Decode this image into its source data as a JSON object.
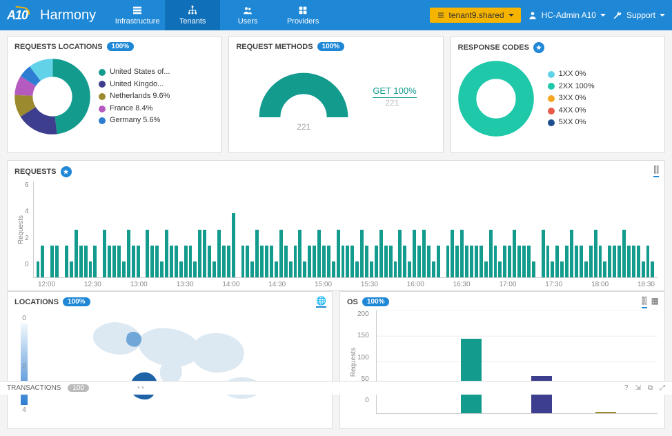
{
  "header": {
    "logo_text": "A10",
    "app_name": "Harmony",
    "nav": [
      {
        "label": "Infrastructure",
        "icon": "infra"
      },
      {
        "label": "Tenants",
        "icon": "tenants",
        "active": true
      },
      {
        "label": "Users",
        "icon": "users"
      },
      {
        "label": "Providers",
        "icon": "providers"
      }
    ],
    "tenant_label": "tenant9.shared",
    "user_label": "HC-Admin A10",
    "support_label": "Support"
  },
  "locations_panel": {
    "title": "REQUESTS LOCATIONS",
    "badge": "100%",
    "slices": [
      {
        "label": "United States of...",
        "color": "#139b8e",
        "pct": 48
      },
      {
        "label": "United Kingdo...",
        "color": "#3e3e8e",
        "pct": 18
      },
      {
        "label": "Netherlands 9.6%",
        "color": "#9c8b2e",
        "pct": 9.6
      },
      {
        "label": "France 8.4%",
        "color": "#b55bc0",
        "pct": 8.4
      },
      {
        "label": "Germany 5.6%",
        "color": "#2d7dd2",
        "pct": 5.6
      }
    ],
    "other_color": "#62d2e9",
    "other_pct": 10.4
  },
  "methods_panel": {
    "title": "REQUEST METHODS",
    "badge": "100%",
    "gauge_color": "#139b8e",
    "gauge_value": 221,
    "get_label": "GET 100%",
    "get_sub": "221"
  },
  "codes_panel": {
    "title": "RESPONSE CODES",
    "items": [
      {
        "label": "1XX 0%",
        "color": "#62d2e9"
      },
      {
        "label": "2XX 100%",
        "color": "#1fc8a9"
      },
      {
        "label": "3XX 0%",
        "color": "#f5a623"
      },
      {
        "label": "4XX 0%",
        "color": "#e85b4a"
      },
      {
        "label": "5XX 0%",
        "color": "#1e4e8e"
      }
    ],
    "ring_color": "#1fc8a9"
  },
  "requests_panel": {
    "title": "REQUESTS",
    "ylabel": "Requests",
    "ymax": 6,
    "yticks": [
      "6",
      "4",
      "2",
      "0"
    ],
    "xticks": [
      "12:00",
      "12:30",
      "13:00",
      "13:30",
      "14:00",
      "14:30",
      "15:00",
      "15:30",
      "16:00",
      "16:30",
      "17:00",
      "17:30",
      "18:00",
      "18:30"
    ],
    "bars": [
      1,
      2,
      0,
      2,
      2,
      0,
      2,
      1,
      3,
      2,
      2,
      1,
      2,
      0,
      3,
      2,
      2,
      2,
      1,
      3,
      2,
      2,
      0,
      3,
      2,
      2,
      1,
      3,
      2,
      2,
      1,
      2,
      2,
      1,
      3,
      3,
      2,
      1,
      3,
      2,
      2,
      4,
      0,
      2,
      2,
      1,
      3,
      2,
      2,
      2,
      1,
      3,
      2,
      1,
      2,
      3,
      1,
      2,
      2,
      3,
      2,
      2,
      1,
      3,
      2,
      2,
      2,
      1,
      3,
      2,
      1,
      2,
      3,
      2,
      2,
      1,
      3,
      2,
      1,
      3,
      2,
      3,
      2,
      1,
      2,
      0,
      2,
      3,
      2,
      3,
      2,
      2,
      2,
      2,
      1,
      3,
      2,
      1,
      2,
      2,
      3,
      2,
      2,
      2,
      1,
      0,
      3,
      2,
      1,
      2,
      1,
      2,
      3,
      2,
      2,
      1,
      2,
      3,
      2,
      1,
      2,
      2,
      2,
      3,
      2,
      2,
      2,
      1,
      2,
      1
    ],
    "bar_color": "#139b8e"
  },
  "map_panel": {
    "title": "LOCATIONS",
    "badge": "100%",
    "legend_vals": [
      "0",
      "2",
      "4"
    ]
  },
  "os_panel": {
    "title": "OS",
    "badge": "100%",
    "ylabel": "Requests",
    "ymax": 200,
    "yticks": [
      "200",
      "150",
      "100",
      "50",
      "0"
    ],
    "bars": [
      {
        "value": 145,
        "color": "#139b8e",
        "x_pct": 30
      },
      {
        "value": 72,
        "color": "#3e3e8e",
        "x_pct": 55
      },
      {
        "value": 3,
        "color": "#9c8b2e",
        "x_pct": 78
      }
    ]
  },
  "footer": {
    "label": "TRANSACTIONS",
    "count": "100",
    "status": "• •"
  }
}
